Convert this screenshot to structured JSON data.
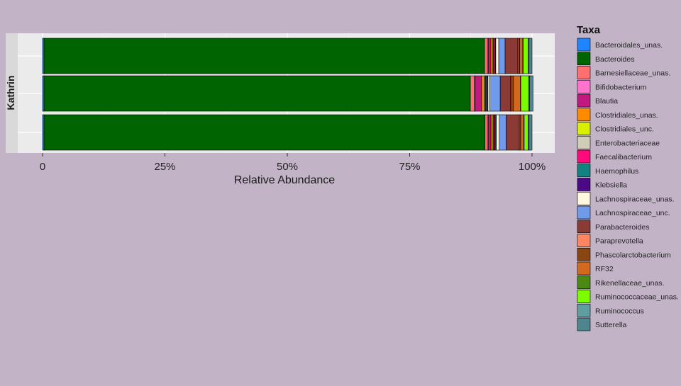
{
  "chart_data": {
    "type": "bar",
    "orientation": "horizontal",
    "stacked": true,
    "facet_label": "Kathrin",
    "xlabel": "Relative Abundance",
    "ylabel": "",
    "xlim": [
      0,
      1
    ],
    "x_ticks": [
      0,
      0.25,
      0.5,
      0.75,
      1.0
    ],
    "x_tick_labels": [
      "0",
      "25%",
      "50%",
      "75%",
      "100%"
    ],
    "grid": true,
    "legend_title": "Taxa",
    "legend_position": "right",
    "taxa": [
      {
        "name": "Bacteroidales_unas.",
        "color": "#1f84ff"
      },
      {
        "name": "Bacteroides",
        "color": "#006400"
      },
      {
        "name": "Barnesiellaceae_unas.",
        "color": "#ff6f6f"
      },
      {
        "name": "Bifidobacterium",
        "color": "#ff73cf"
      },
      {
        "name": "Blautia",
        "color": "#c3197e"
      },
      {
        "name": "Clostridiales_unas.",
        "color": "#ff8a00"
      },
      {
        "name": "Clostridiales_unc.",
        "color": "#d8f000"
      },
      {
        "name": "Enterobacteriaceae",
        "color": "#cfcdb5"
      },
      {
        "name": "Faecalibacterium",
        "color": "#ff0a7a"
      },
      {
        "name": "Haemophilus",
        "color": "#138381"
      },
      {
        "name": "Klebsiella",
        "color": "#4b0a84"
      },
      {
        "name": "Lachnospiraceae_unas.",
        "color": "#fff8df"
      },
      {
        "name": "Lachnospiraceae_unc.",
        "color": "#6f9bea"
      },
      {
        "name": "Parabacteroides",
        "color": "#8a3b35"
      },
      {
        "name": "Paraprevotella",
        "color": "#ff8560"
      },
      {
        "name": "Phascolarctobacterium",
        "color": "#8b4513"
      },
      {
        "name": "RF32",
        "color": "#d2691e"
      },
      {
        "name": "Rikenellaceae_unas.",
        "color": "#4a8a12"
      },
      {
        "name": "Ruminococcaceae_unas.",
        "color": "#7cfc00"
      },
      {
        "name": "Ruminococcus",
        "color": "#5f9ea0"
      },
      {
        "name": "Sutterella",
        "color": "#4f858e"
      }
    ],
    "bars": [
      {
        "values": [
          0.003,
          0.9,
          0.006,
          0.002,
          0.004,
          0.003,
          0.002,
          0.001,
          0.002,
          0.002,
          0.001,
          0.006,
          0.013,
          0.026,
          0.002,
          0.002,
          0.006,
          0.001,
          0.01,
          0.002,
          0.006
        ]
      },
      {
        "values": [
          0.003,
          0.871,
          0.008,
          0.002,
          0.013,
          0.005,
          0.002,
          0.001,
          0.002,
          0.002,
          0.001,
          0.004,
          0.021,
          0.021,
          0.002,
          0.004,
          0.014,
          0.001,
          0.016,
          0.002,
          0.007
        ]
      },
      {
        "values": [
          0.003,
          0.901,
          0.005,
          0.002,
          0.005,
          0.003,
          0.002,
          0.001,
          0.002,
          0.002,
          0.001,
          0.006,
          0.014,
          0.026,
          0.002,
          0.002,
          0.006,
          0.001,
          0.008,
          0.002,
          0.006
        ]
      }
    ]
  }
}
